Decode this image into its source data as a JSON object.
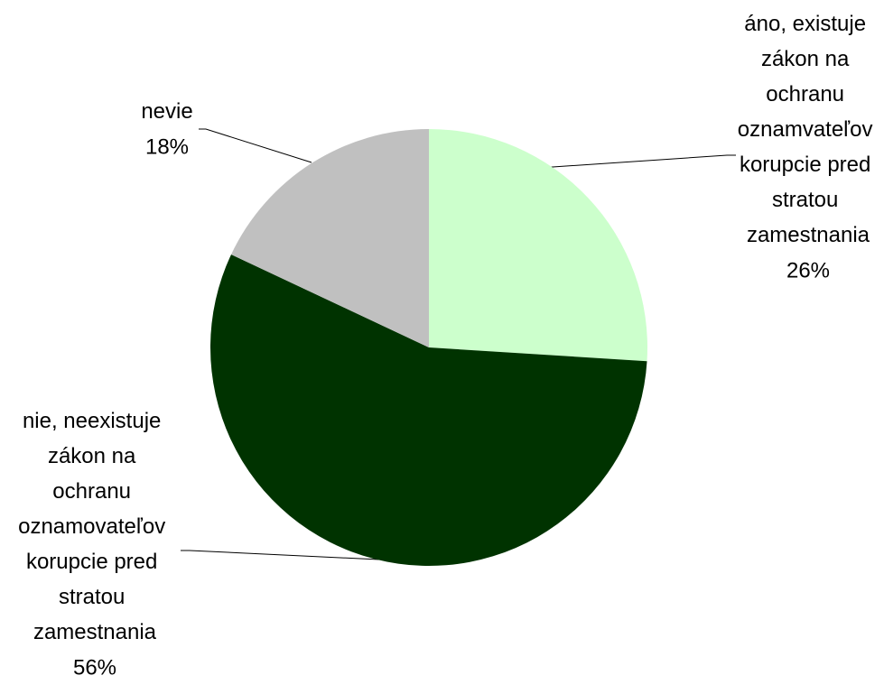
{
  "chart_data": {
    "type": "pie",
    "categories": [
      "áno, existuje zákon na ochranu oznamvateľov korupcie pred stratou zamestnania",
      "nie, neexistuje zákon na ochranu oznamovateľov korupcie pred stratou zamestnania",
      "nevie"
    ],
    "values": [
      26,
      56,
      18
    ],
    "value_labels": [
      "26%",
      "56%",
      "18%"
    ],
    "colors": [
      "#ccffcc",
      "#003300",
      "#c0c0c0"
    ]
  }
}
